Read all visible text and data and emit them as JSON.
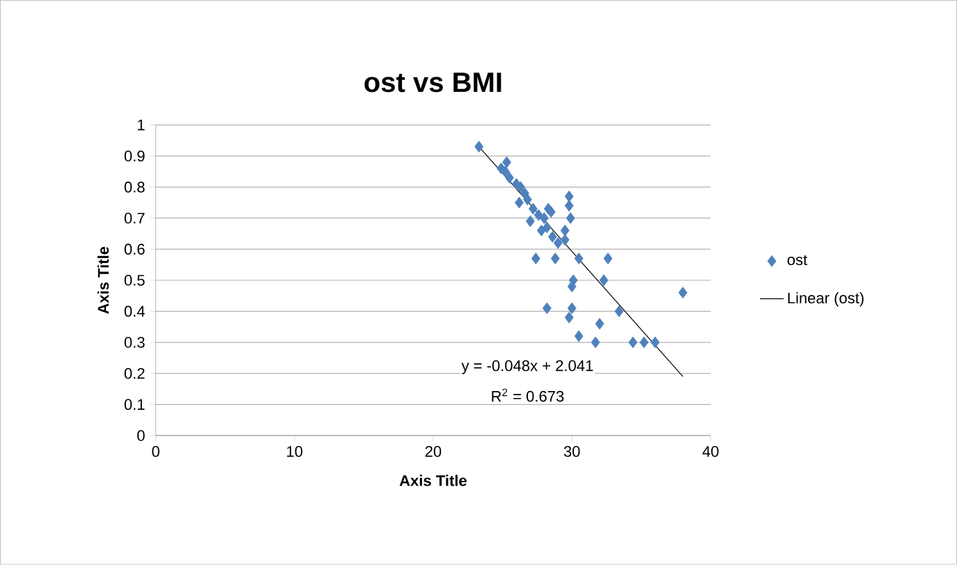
{
  "chart_data": {
    "type": "scatter",
    "title": "ost vs BMI",
    "xlabel": "Axis Title",
    "ylabel": "Axis Title",
    "xlim": [
      0,
      40
    ],
    "ylim": [
      0,
      1
    ],
    "xticks": [
      0,
      10,
      20,
      30,
      40
    ],
    "yticks": [
      0,
      0.1,
      0.2,
      0.3,
      0.4,
      0.5,
      0.6,
      0.7,
      0.8,
      0.9,
      1
    ],
    "grid": "y",
    "legend": "right",
    "marker": "diamond",
    "annotations": [
      "y = -0.048x + 2.041",
      "R$^{2}$ = 0.673"
    ],
    "series": [
      {
        "name": "ost",
        "color": "#4f81bd",
        "x": [
          23.3,
          24.9,
          25.3,
          25.2,
          25.5,
          26.0,
          26.3,
          26.6,
          26.8,
          26.2,
          27.2,
          27.0,
          27.6,
          28.0,
          28.3,
          28.5,
          28.2,
          27.8,
          28.6,
          29.0,
          29.5,
          29.8,
          29.8,
          29.9,
          29.5,
          28.8,
          27.4,
          30.5,
          32.6,
          30.1,
          30.0,
          32.3,
          28.2,
          30.0,
          29.8,
          33.4,
          30.5,
          32.0,
          31.7,
          34.4,
          35.2,
          36.0,
          38.0
        ],
        "values": [
          0.93,
          0.86,
          0.88,
          0.85,
          0.83,
          0.81,
          0.8,
          0.78,
          0.76,
          0.75,
          0.73,
          0.69,
          0.71,
          0.7,
          0.73,
          0.72,
          0.67,
          0.66,
          0.64,
          0.62,
          0.63,
          0.77,
          0.74,
          0.7,
          0.66,
          0.57,
          0.57,
          0.57,
          0.57,
          0.5,
          0.48,
          0.5,
          0.41,
          0.41,
          0.38,
          0.4,
          0.32,
          0.36,
          0.3,
          0.3,
          0.3,
          0.3,
          0.46
        ]
      },
      {
        "name": "Linear (ost)",
        "type": "line",
        "color": "#000000",
        "marker": "none",
        "x": [
          23.3,
          38.0
        ],
        "values": [
          0.93,
          0.19
        ]
      }
    ]
  }
}
